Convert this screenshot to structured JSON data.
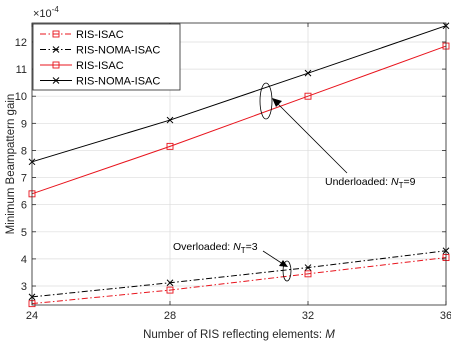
{
  "chart_data": {
    "type": "line",
    "xlabel_prefix": "Number of RIS reflecting elements: ",
    "xlabel_var": "M",
    "ylabel": "Minimum Beampattern gain",
    "y_exponent_base": "×10",
    "y_exponent_power": "-4",
    "xlim": [
      24,
      36
    ],
    "ylim": [
      2.3,
      12.7
    ],
    "xticks": [
      24,
      28,
      32,
      36
    ],
    "yticks": [
      3,
      4,
      5,
      6,
      7,
      8,
      9,
      10,
      11,
      12
    ],
    "grid": true,
    "legend_position": "top-left",
    "x": [
      24,
      28,
      32,
      36
    ],
    "series": [
      {
        "name": "RIS-ISAC",
        "color": "#e8141d",
        "dash": "dashdot",
        "marker": "square",
        "values": [
          2.35,
          2.85,
          3.45,
          4.05
        ]
      },
      {
        "name": "RIS-NOMA-ISAC",
        "color": "#000000",
        "dash": "dashdot",
        "marker": "x",
        "values": [
          2.6,
          3.12,
          3.68,
          4.3
        ]
      },
      {
        "name": "RIS-ISAC",
        "color": "#e8141d",
        "dash": "solid",
        "marker": "square",
        "values": [
          6.4,
          8.15,
          10.0,
          11.85
        ]
      },
      {
        "name": "RIS-NOMA-ISAC",
        "color": "#000000",
        "dash": "solid",
        "marker": "x",
        "values": [
          7.58,
          9.12,
          10.85,
          12.6
        ]
      }
    ],
    "annotations": [
      {
        "text": "Underloaded: ",
        "var": "N",
        "sub": "T",
        "rest": "=9"
      },
      {
        "text": "Overloaded: ",
        "var": "N",
        "sub": "T",
        "rest": "=3"
      }
    ]
  }
}
